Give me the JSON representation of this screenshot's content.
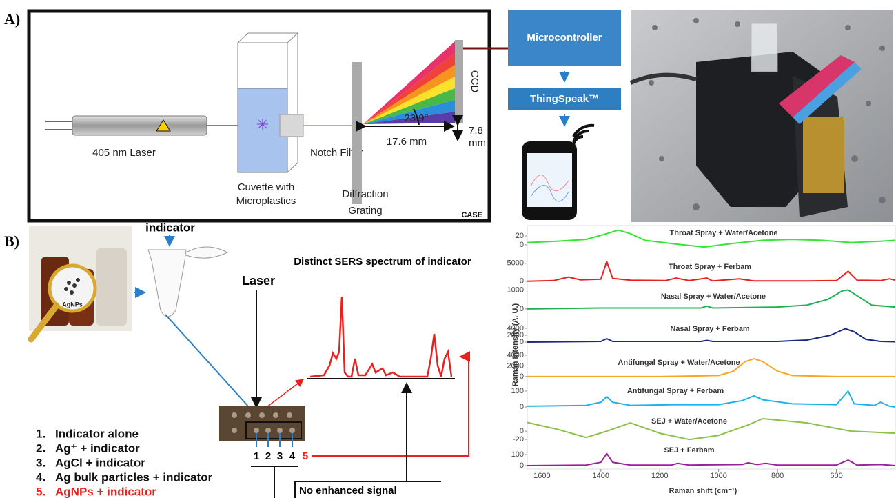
{
  "panel_a": {
    "label": "A)",
    "laser": "405 nm Laser",
    "cuvette": [
      "Cuvette with",
      "Microplastics"
    ],
    "notch_filter": "Notch Filter",
    "grating": [
      "Diffraction",
      "Grating"
    ],
    "ccd": "CCD",
    "angle": "23.9°",
    "height": [
      "7.8",
      "mm"
    ],
    "length": "17.6 mm",
    "case": "CASE",
    "microcontroller": "Microcontroller",
    "thingspeak": "ThingSpeak™"
  },
  "panel_b": {
    "label": "B)",
    "indicator": "indicator",
    "agnps": "AgNPs",
    "laser": "Laser",
    "sers_title": "Distinct SERS spectrum of indicator",
    "wells": [
      "1",
      "2",
      "3",
      "4",
      "5"
    ],
    "list": [
      {
        "number": "1.",
        "text": "Indicator alone"
      },
      {
        "number": "2.",
        "text": "Ag⁺ + indicator"
      },
      {
        "number": "3.",
        "text": "AgCl + indicator"
      },
      {
        "number": "4.",
        "text": "Ag bulk particles + indicator"
      },
      {
        "number": "5.",
        "text": "AgNPs + indicator"
      }
    ],
    "no_signal": "No enhanced signal"
  },
  "chart_data": {
    "type": "line",
    "xlabel": "Raman shift (cm⁻¹)",
    "ylabel": "Raman Intensity (A. U.)",
    "xlim": [
      1650,
      400
    ],
    "xticks": [
      1600,
      1400,
      1200,
      1000,
      800,
      600
    ],
    "series": [
      {
        "name": "Throat Spray + Water/Acetone",
        "color": "#33e633",
        "ylim": [
          -25,
          37
        ],
        "yticks": [
          20,
          0
        ],
        "x": [
          1650,
          1550,
          1450,
          1380,
          1340,
          1300,
          1250,
          1150,
          1050,
          950,
          850,
          750,
          650,
          550,
          450,
          400
        ],
        "values": [
          5,
          8,
          12,
          25,
          33,
          25,
          10,
          2,
          -5,
          3,
          10,
          12,
          10,
          5,
          8,
          10
        ]
      },
      {
        "name": "Throat Spray + Ferbam",
        "color": "#e82020",
        "ylim": [
          -1000,
          6700
        ],
        "yticks": [
          5000,
          0
        ],
        "x": [
          1650,
          1560,
          1510,
          1470,
          1400,
          1380,
          1360,
          1300,
          1180,
          1145,
          1100,
          1040,
          1020,
          930,
          880,
          700,
          600,
          560,
          530,
          450,
          420,
          400
        ],
        "values": [
          0,
          200,
          1200,
          400,
          600,
          5500,
          800,
          300,
          200,
          900,
          200,
          900,
          100,
          700,
          100,
          100,
          200,
          2800,
          300,
          200,
          700,
          300
        ]
      },
      {
        "name": "Nasal Spray + Water/Acetone",
        "color": "#22b050",
        "ylim": [
          -260,
          1200
        ],
        "yticks": [
          1000,
          0
        ],
        "x": [
          1650,
          1400,
          1200,
          1060,
          1040,
          1020,
          800,
          700,
          630,
          580,
          560,
          530,
          480,
          400
        ],
        "values": [
          0,
          50,
          50,
          50,
          150,
          50,
          100,
          200,
          500,
          950,
          1000,
          700,
          200,
          100
        ]
      },
      {
        "name": "Nasal Spray + Ferbam",
        "color": "#1a2a80",
        "ylim": [
          -800,
          7200
        ],
        "yticks": [
          4000,
          2000,
          0
        ],
        "x": [
          1650,
          1400,
          1380,
          1360,
          1060,
          1040,
          1020,
          800,
          700,
          620,
          570,
          540,
          500,
          450,
          400
        ],
        "values": [
          0,
          200,
          1000,
          200,
          200,
          500,
          200,
          200,
          600,
          2000,
          3900,
          3000,
          800,
          200,
          100
        ]
      },
      {
        "name": "Antifungal Spray + Water/Acetone",
        "color": "#f5a623",
        "ylim": [
          -400,
          5300
        ],
        "yticks": [
          4000,
          2000,
          0
        ],
        "x": [
          1650,
          1200,
          1000,
          950,
          910,
          880,
          850,
          800,
          750,
          600,
          400
        ],
        "values": [
          0,
          0,
          200,
          1000,
          2800,
          3350,
          2800,
          1000,
          200,
          0,
          0
        ]
      },
      {
        "name": "Antifungal Spray + Ferbam",
        "color": "#1fb0e8",
        "ylim": [
          -26,
          165
        ],
        "yticks": [
          100,
          0
        ],
        "x": [
          1650,
          1450,
          1400,
          1380,
          1360,
          1300,
          1150,
          1000,
          920,
          880,
          850,
          750,
          600,
          560,
          540,
          470,
          450,
          420,
          400
        ],
        "values": [
          5,
          10,
          30,
          65,
          30,
          10,
          15,
          15,
          40,
          70,
          45,
          20,
          15,
          100,
          20,
          10,
          30,
          5,
          0
        ]
      },
      {
        "name": "SEJ + Water/Acetone",
        "color": "#8cc04a",
        "ylim": [
          -28,
          45
        ],
        "yticks": [
          0,
          -20
        ],
        "x": [
          1650,
          1550,
          1450,
          1380,
          1300,
          1200,
          1100,
          1000,
          900,
          850,
          700,
          550,
          400
        ],
        "values": [
          21,
          5,
          -15,
          0,
          20,
          -5,
          -20,
          -10,
          15,
          30,
          20,
          0,
          -5
        ]
      },
      {
        "name": "SEJ + Ferbam",
        "color": "#9b1f9b",
        "ylim": [
          -31,
          194
        ],
        "yticks": [
          100,
          0
        ],
        "x": [
          1650,
          1450,
          1400,
          1380,
          1360,
          1300,
          1160,
          1140,
          1100,
          920,
          900,
          870,
          840,
          800,
          600,
          560,
          530,
          450,
          400
        ],
        "values": [
          0,
          5,
          30,
          110,
          30,
          5,
          5,
          20,
          5,
          10,
          25,
          10,
          20,
          5,
          5,
          50,
          5,
          10,
          0
        ]
      }
    ]
  }
}
